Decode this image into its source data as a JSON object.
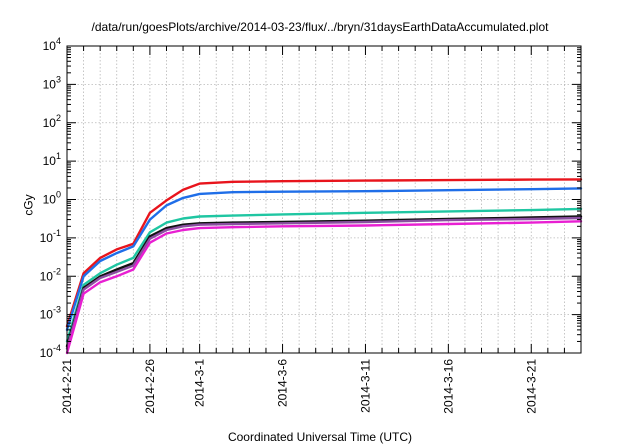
{
  "chart_data": {
    "type": "line",
    "title": "/data/run/goesPlots/archive/2014-03-23/flux/../bryn/31daysEarthDataAccumulated.plot",
    "xlabel": "Coordinated Universal Time (UTC)",
    "ylabel": "cGy",
    "y_scale": "log",
    "ylim": [
      0.0001,
      10000
    ],
    "xlim": [
      "2014-02-21",
      "2014-03-24"
    ],
    "grid": true,
    "x_tick_labels": [
      "2014-2-21",
      "2014-2-26",
      "2014-3-1",
      "2014-3-6",
      "2014-3-11",
      "2014-3-16",
      "2014-3-21"
    ],
    "y_tick_labels": [
      {
        "base": "10",
        "exp": "-4"
      },
      {
        "base": "10",
        "exp": "-3"
      },
      {
        "base": "10",
        "exp": "-2"
      },
      {
        "base": "10",
        "exp": "-1"
      },
      {
        "base": "10",
        "exp": "0"
      },
      {
        "base": "10",
        "exp": "1"
      },
      {
        "base": "10",
        "exp": "2"
      },
      {
        "base": "10",
        "exp": "3"
      },
      {
        "base": "10",
        "exp": "4"
      }
    ],
    "x": [
      "2014-02-21",
      "2014-02-22",
      "2014-02-23",
      "2014-02-24",
      "2014-02-25",
      "2014-02-26",
      "2014-02-27",
      "2014-02-28",
      "2014-03-01",
      "2014-03-03",
      "2014-03-06",
      "2014-03-11",
      "2014-03-16",
      "2014-03-21",
      "2014-03-24"
    ],
    "series": [
      {
        "color": "#e8141c",
        "values": [
          0.0005,
          0.012,
          0.03,
          0.05,
          0.07,
          0.45,
          0.95,
          1.8,
          2.6,
          2.9,
          3.0,
          3.1,
          3.2,
          3.3,
          3.35
        ]
      },
      {
        "color": "#1f6ee8",
        "values": [
          0.0004,
          0.01,
          0.025,
          0.04,
          0.06,
          0.3,
          0.7,
          1.1,
          1.4,
          1.55,
          1.6,
          1.65,
          1.75,
          1.85,
          1.95
        ]
      },
      {
        "color": "#1fc6a2",
        "values": [
          0.0002,
          0.006,
          0.012,
          0.02,
          0.03,
          0.14,
          0.25,
          0.32,
          0.36,
          0.38,
          0.41,
          0.45,
          0.49,
          0.53,
          0.57
        ]
      },
      {
        "color": "#111111",
        "values": [
          0.00015,
          0.005,
          0.01,
          0.015,
          0.022,
          0.11,
          0.18,
          0.22,
          0.24,
          0.25,
          0.26,
          0.28,
          0.31,
          0.34,
          0.36
        ]
      },
      {
        "color": "#8a4fa0",
        "values": [
          0.00013,
          0.0045,
          0.009,
          0.013,
          0.019,
          0.095,
          0.16,
          0.2,
          0.22,
          0.23,
          0.24,
          0.26,
          0.29,
          0.31,
          0.33
        ]
      },
      {
        "color": "#e81fd2",
        "values": [
          0.0001,
          0.0035,
          0.007,
          0.01,
          0.015,
          0.075,
          0.13,
          0.16,
          0.18,
          0.19,
          0.2,
          0.21,
          0.23,
          0.25,
          0.27
        ]
      }
    ]
  }
}
